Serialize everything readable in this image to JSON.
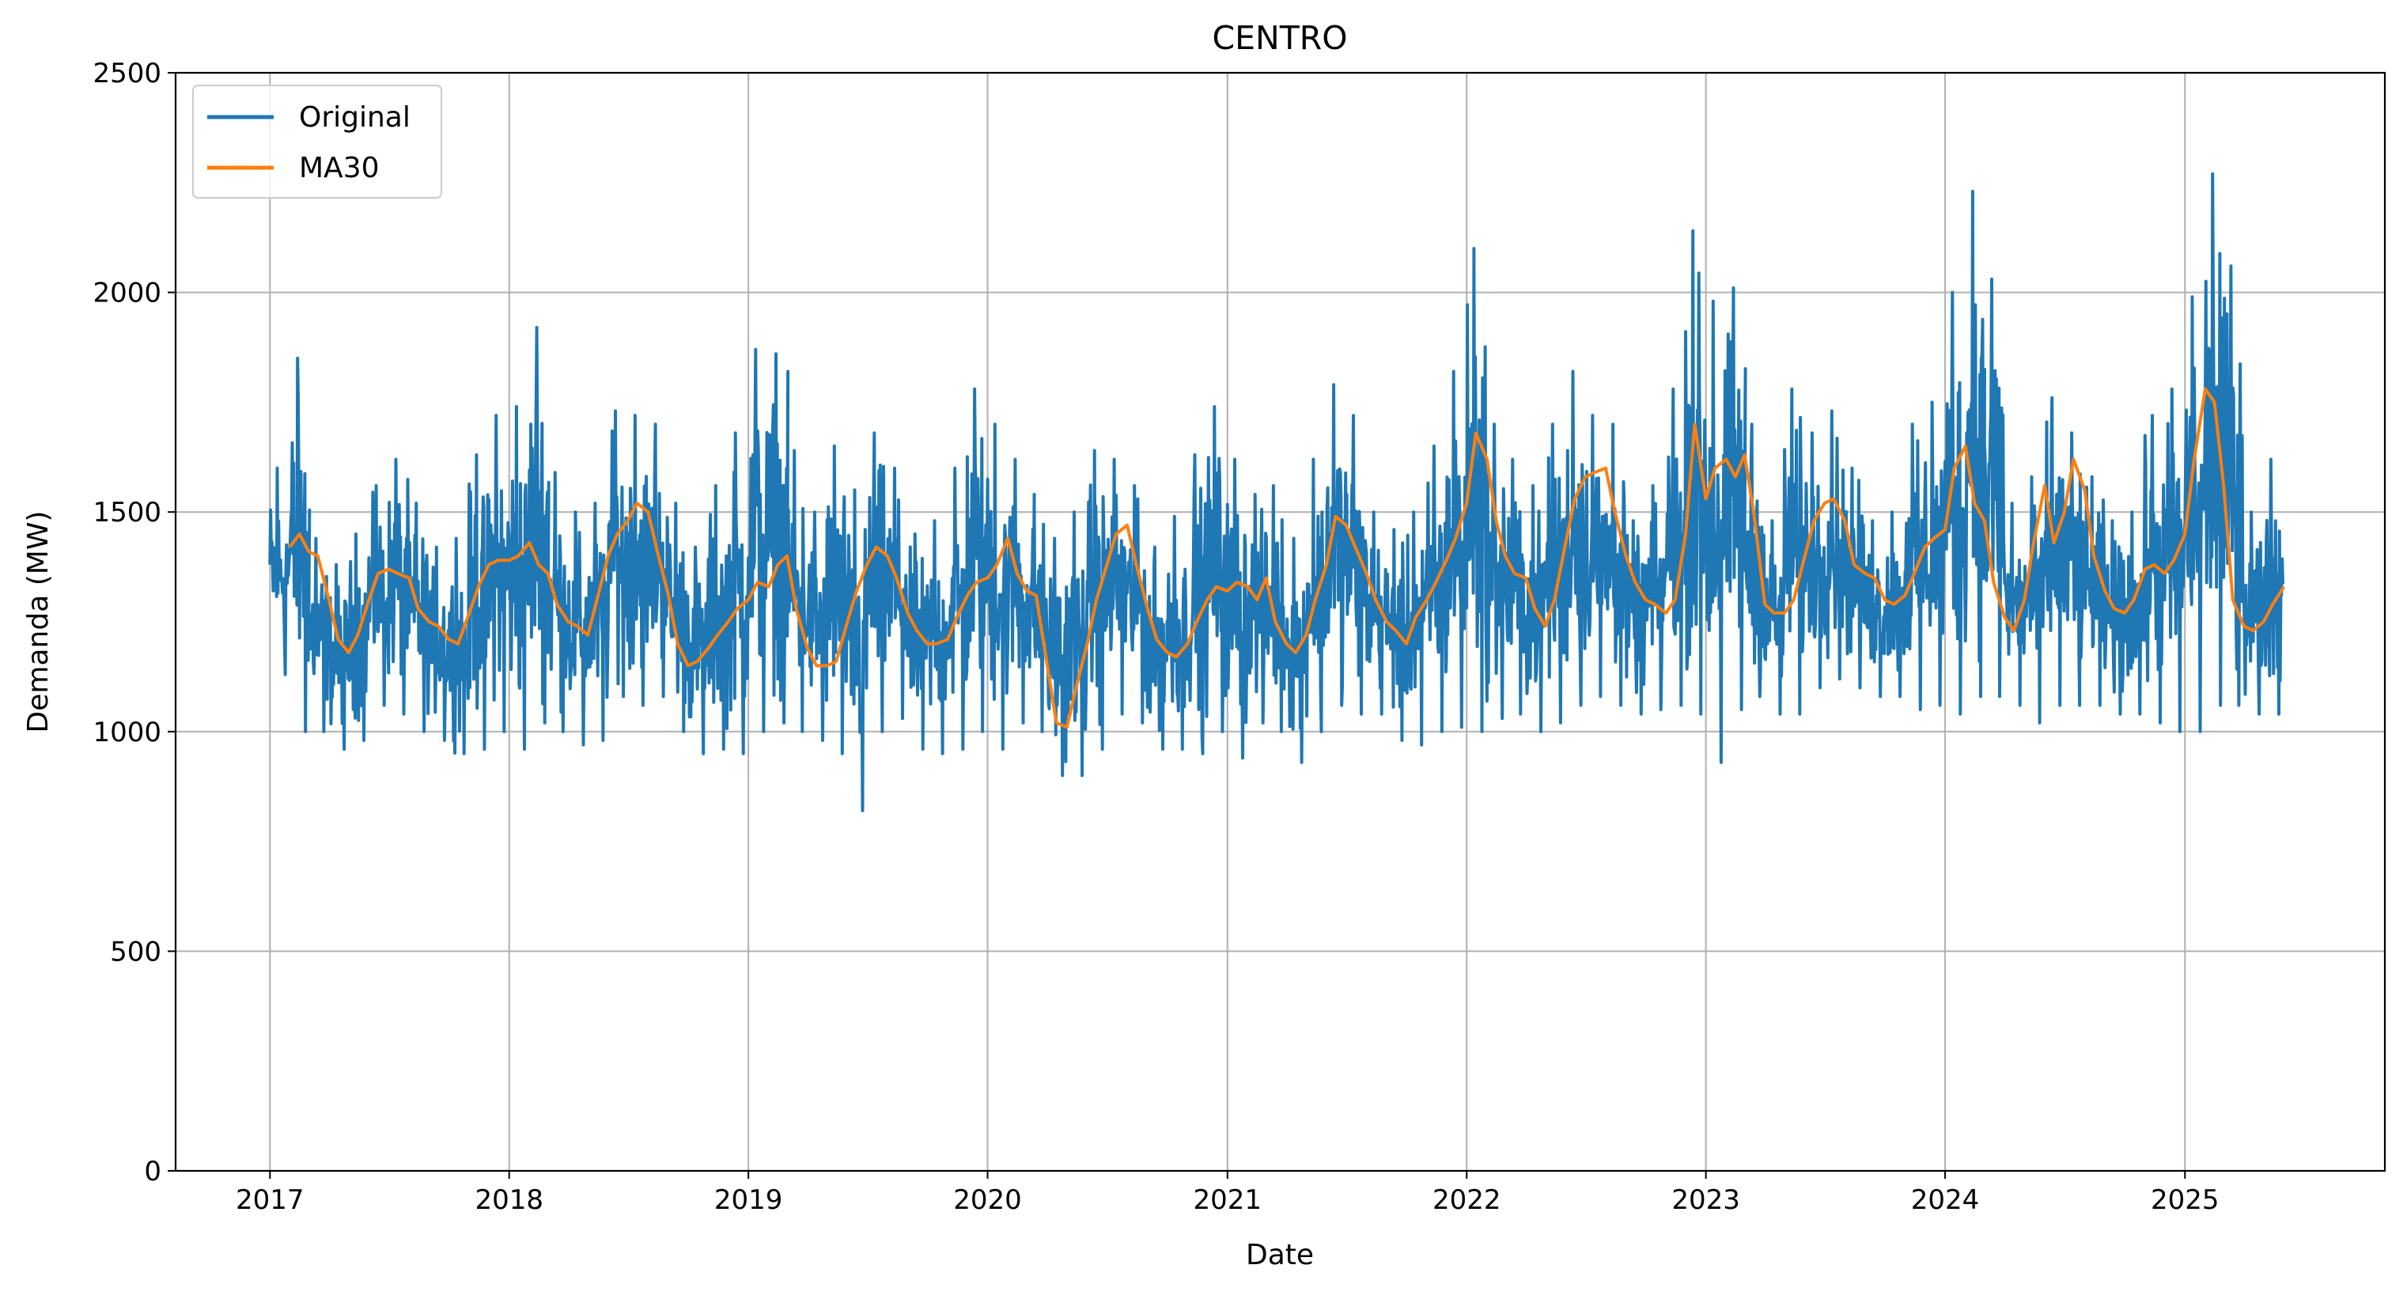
{
  "chart_data": {
    "type": "line",
    "title": "CENTRO",
    "xlabel": "Date",
    "ylabel": "Demanda (MW)",
    "xlim": [
      "2016-08-10",
      "2025-11-02"
    ],
    "ylim": [
      0,
      2500
    ],
    "x_ticks": [
      "2017",
      "2018",
      "2019",
      "2020",
      "2021",
      "2022",
      "2023",
      "2024",
      "2025"
    ],
    "y_ticks": [
      "0",
      "500",
      "1000",
      "1500",
      "2000",
      "2500"
    ],
    "grid": true,
    "legend_position": "top-left",
    "series": [
      {
        "name": "Original",
        "color": "#1f77b4",
        "band_note": "daily values; envelope read from the plot (low, high) per month",
        "x": [
          "2017-01",
          "2017-02",
          "2017-03",
          "2017-04",
          "2017-05",
          "2017-06",
          "2017-07",
          "2017-08",
          "2017-09",
          "2017-10",
          "2017-11",
          "2017-12",
          "2018-01",
          "2018-02",
          "2018-03",
          "2018-04",
          "2018-05",
          "2018-06",
          "2018-07",
          "2018-08",
          "2018-09",
          "2018-10",
          "2018-11",
          "2018-12",
          "2019-01",
          "2019-02",
          "2019-03",
          "2019-04",
          "2019-05",
          "2019-06",
          "2019-07",
          "2019-08",
          "2019-09",
          "2019-10",
          "2019-11",
          "2019-12",
          "2020-01",
          "2020-02",
          "2020-03",
          "2020-04",
          "2020-05",
          "2020-06",
          "2020-07",
          "2020-08",
          "2020-09",
          "2020-10",
          "2020-11",
          "2020-12",
          "2021-01",
          "2021-02",
          "2021-03",
          "2021-04",
          "2021-05",
          "2021-06",
          "2021-07",
          "2021-08",
          "2021-09",
          "2021-10",
          "2021-11",
          "2021-12",
          "2022-01",
          "2022-02",
          "2022-03",
          "2022-04",
          "2022-05",
          "2022-06",
          "2022-07",
          "2022-08",
          "2022-09",
          "2022-10",
          "2022-11",
          "2022-12",
          "2023-01",
          "2023-02",
          "2023-03",
          "2023-04",
          "2023-05",
          "2023-06",
          "2023-07",
          "2023-08",
          "2023-09",
          "2023-10",
          "2023-11",
          "2023-12",
          "2024-01",
          "2024-02",
          "2024-03",
          "2024-04",
          "2024-05",
          "2024-06",
          "2024-07",
          "2024-08",
          "2024-09",
          "2024-10",
          "2024-11",
          "2024-12",
          "2025-01",
          "2025-02",
          "2025-03",
          "2025-04",
          "2025-05"
        ],
        "low": [
          1130,
          1000,
          1000,
          960,
          980,
          1060,
          1040,
          1000,
          980,
          950,
          960,
          1000,
          960,
          1020,
          1000,
          970,
          980,
          1080,
          1060,
          1080,
          1000,
          950,
          960,
          950,
          1000,
          1020,
          1000,
          980,
          950,
          820,
          1000,
          1030,
          960,
          950,
          960,
          1000,
          960,
          1020,
          1000,
          900,
          900,
          960,
          1040,
          1020,
          960,
          960,
          950,
          1000,
          940,
          1020,
          1000,
          930,
          1000,
          1060,
          1040,
          1040,
          980,
          970,
          1000,
          1010,
          1000,
          1030,
          1040,
          1000,
          1020,
          1060,
          1080,
          1060,
          1040,
          1050,
          1060,
          1040,
          930,
          1050,
          1080,
          1040,
          1040,
          1100,
          1120,
          1100,
          1080,
          1080,
          1050,
          1060,
          1040,
          1080,
          1080,
          1060,
          1020,
          1060,
          1060,
          1060,
          1040,
          1040,
          1020,
          1000,
          1000,
          1060,
          1060,
          1040,
          1040
        ],
        "high": [
          1600,
          1850,
          1440,
          1380,
          1450,
          1560,
          1620,
          1520,
          1420,
          1440,
          1630,
          1720,
          1740,
          1920,
          1590,
          1500,
          1520,
          1730,
          1720,
          1700,
          1520,
          1420,
          1560,
          1680,
          1870,
          1860,
          1640,
          1500,
          1650,
          1550,
          1680,
          1600,
          1450,
          1480,
          1600,
          1780,
          1700,
          1620,
          1540,
          1440,
          1500,
          1640,
          1620,
          1560,
          1420,
          1490,
          1630,
          1740,
          1620,
          1540,
          1560,
          1440,
          1620,
          1790,
          1720,
          1500,
          1460,
          1500,
          1650,
          1820,
          2100,
          1700,
          1620,
          1560,
          1700,
          1820,
          1720,
          1700,
          1480,
          1560,
          1780,
          2140,
          1980,
          2010,
          1700,
          1480,
          1780,
          1680,
          1730,
          1600,
          1480,
          1500,
          1700,
          1750,
          2000,
          2230,
          2030,
          1520,
          1580,
          1760,
          1680,
          1580,
          1480,
          1500,
          1720,
          1780,
          1990,
          2270,
          2060,
          1500,
          1620
        ]
      },
      {
        "name": "MA30",
        "color": "#ff7f0e",
        "x": [
          "2017-01-31",
          "2017-02-15",
          "2017-03-01",
          "2017-03-15",
          "2017-04-01",
          "2017-04-15",
          "2017-05-01",
          "2017-05-15",
          "2017-06-01",
          "2017-06-15",
          "2017-07-01",
          "2017-07-15",
          "2017-08-01",
          "2017-08-15",
          "2017-09-01",
          "2017-09-15",
          "2017-10-01",
          "2017-10-15",
          "2017-11-01",
          "2017-11-15",
          "2017-12-01",
          "2017-12-15",
          "2018-01-01",
          "2018-01-15",
          "2018-02-01",
          "2018-02-15",
          "2018-03-01",
          "2018-03-15",
          "2018-04-01",
          "2018-04-15",
          "2018-05-01",
          "2018-05-15",
          "2018-06-01",
          "2018-06-15",
          "2018-07-01",
          "2018-07-15",
          "2018-08-01",
          "2018-08-15",
          "2018-09-01",
          "2018-09-15",
          "2018-10-01",
          "2018-10-15",
          "2018-11-01",
          "2018-11-15",
          "2018-12-01",
          "2018-12-15",
          "2019-01-01",
          "2019-01-15",
          "2019-02-01",
          "2019-02-15",
          "2019-03-01",
          "2019-03-15",
          "2019-04-01",
          "2019-04-15",
          "2019-05-01",
          "2019-05-15",
          "2019-06-01",
          "2019-06-15",
          "2019-07-01",
          "2019-07-15",
          "2019-08-01",
          "2019-08-15",
          "2019-09-01",
          "2019-09-15",
          "2019-10-01",
          "2019-10-15",
          "2019-11-01",
          "2019-11-15",
          "2019-12-01",
          "2019-12-15",
          "2020-01-01",
          "2020-01-15",
          "2020-02-01",
          "2020-02-15",
          "2020-03-01",
          "2020-03-15",
          "2020-04-01",
          "2020-04-15",
          "2020-05-01",
          "2020-05-15",
          "2020-06-01",
          "2020-06-15",
          "2020-07-01",
          "2020-07-15",
          "2020-08-01",
          "2020-08-15",
          "2020-09-01",
          "2020-09-15",
          "2020-10-01",
          "2020-10-15",
          "2020-11-01",
          "2020-11-15",
          "2020-12-01",
          "2020-12-15",
          "2021-01-01",
          "2021-01-15",
          "2021-02-01",
          "2021-02-15",
          "2021-03-01",
          "2021-03-15",
          "2021-04-01",
          "2021-04-15",
          "2021-05-01",
          "2021-05-15",
          "2021-06-01",
          "2021-06-15",
          "2021-07-01",
          "2021-07-15",
          "2021-08-01",
          "2021-08-15",
          "2021-09-01",
          "2021-09-15",
          "2021-10-01",
          "2021-10-15",
          "2021-11-01",
          "2021-11-15",
          "2021-12-01",
          "2021-12-15",
          "2022-01-01",
          "2022-01-15",
          "2022-02-01",
          "2022-02-15",
          "2022-03-01",
          "2022-03-15",
          "2022-04-01",
          "2022-04-15",
          "2022-05-01",
          "2022-05-15",
          "2022-06-01",
          "2022-06-15",
          "2022-07-01",
          "2022-07-15",
          "2022-08-01",
          "2022-08-15",
          "2022-09-01",
          "2022-09-15",
          "2022-10-01",
          "2022-10-15",
          "2022-11-01",
          "2022-11-15",
          "2022-12-01",
          "2022-12-15",
          "2023-01-01",
          "2023-01-15",
          "2023-02-01",
          "2023-02-15",
          "2023-03-01",
          "2023-03-15",
          "2023-04-01",
          "2023-04-15",
          "2023-05-01",
          "2023-05-15",
          "2023-06-01",
          "2023-06-15",
          "2023-07-01",
          "2023-07-15",
          "2023-08-01",
          "2023-08-15",
          "2023-09-01",
          "2023-09-15",
          "2023-10-01",
          "2023-10-15",
          "2023-11-01",
          "2023-11-15",
          "2023-12-01",
          "2023-12-15",
          "2024-01-01",
          "2024-01-15",
          "2024-02-01",
          "2024-02-15",
          "2024-03-01",
          "2024-03-15",
          "2024-04-01",
          "2024-04-15",
          "2024-05-01",
          "2024-05-15",
          "2024-06-01",
          "2024-06-15",
          "2024-07-01",
          "2024-07-15",
          "2024-08-01",
          "2024-08-15",
          "2024-09-01",
          "2024-09-15",
          "2024-10-01",
          "2024-10-15",
          "2024-11-01",
          "2024-11-15",
          "2024-12-01",
          "2024-12-15",
          "2025-01-01",
          "2025-01-15",
          "2025-02-01",
          "2025-02-15",
          "2025-03-01",
          "2025-03-15",
          "2025-04-01",
          "2025-04-15",
          "2025-05-01",
          "2025-05-15",
          "2025-06-01"
        ],
        "values": [
          1420,
          1450,
          1410,
          1400,
          1300,
          1210,
          1180,
          1220,
          1300,
          1360,
          1370,
          1360,
          1350,
          1280,
          1250,
          1240,
          1210,
          1200,
          1270,
          1330,
          1380,
          1390,
          1390,
          1400,
          1430,
          1380,
          1360,
          1290,
          1250,
          1240,
          1220,
          1300,
          1400,
          1450,
          1480,
          1520,
          1500,
          1410,
          1310,
          1200,
          1150,
          1160,
          1190,
          1220,
          1250,
          1280,
          1300,
          1340,
          1330,
          1380,
          1400,
          1280,
          1190,
          1150,
          1150,
          1160,
          1250,
          1320,
          1380,
          1420,
          1400,
          1350,
          1270,
          1230,
          1200,
          1200,
          1210,
          1260,
          1310,
          1340,
          1350,
          1380,
          1440,
          1360,
          1320,
          1310,
          1150,
          1020,
          1010,
          1100,
          1200,
          1300,
          1380,
          1450,
          1470,
          1380,
          1280,
          1210,
          1180,
          1170,
          1200,
          1250,
          1300,
          1330,
          1320,
          1340,
          1330,
          1300,
          1350,
          1250,
          1200,
          1180,
          1220,
          1300,
          1380,
          1490,
          1470,
          1420,
          1360,
          1300,
          1250,
          1230,
          1200,
          1260,
          1300,
          1340,
          1390,
          1440,
          1520,
          1680,
          1620,
          1480,
          1400,
          1360,
          1350,
          1280,
          1240,
          1300,
          1430,
          1530,
          1580,
          1590,
          1600,
          1500,
          1400,
          1340,
          1300,
          1290,
          1270,
          1300,
          1450,
          1700,
          1530,
          1600,
          1620,
          1580,
          1630,
          1500,
          1290,
          1270,
          1270,
          1300,
          1400,
          1480,
          1520,
          1530,
          1480,
          1380,
          1360,
          1350,
          1300,
          1290,
          1310,
          1360,
          1420,
          1440,
          1460,
          1600,
          1650,
          1520,
          1480,
          1340,
          1260,
          1230,
          1300,
          1430,
          1560,
          1430,
          1500,
          1620,
          1550,
          1400,
          1320,
          1280,
          1270,
          1300,
          1370,
          1380,
          1360,
          1390,
          1450,
          1620,
          1780,
          1750,
          1560,
          1300,
          1240,
          1230,
          1250,
          1290,
          1330
        ]
      }
    ]
  }
}
